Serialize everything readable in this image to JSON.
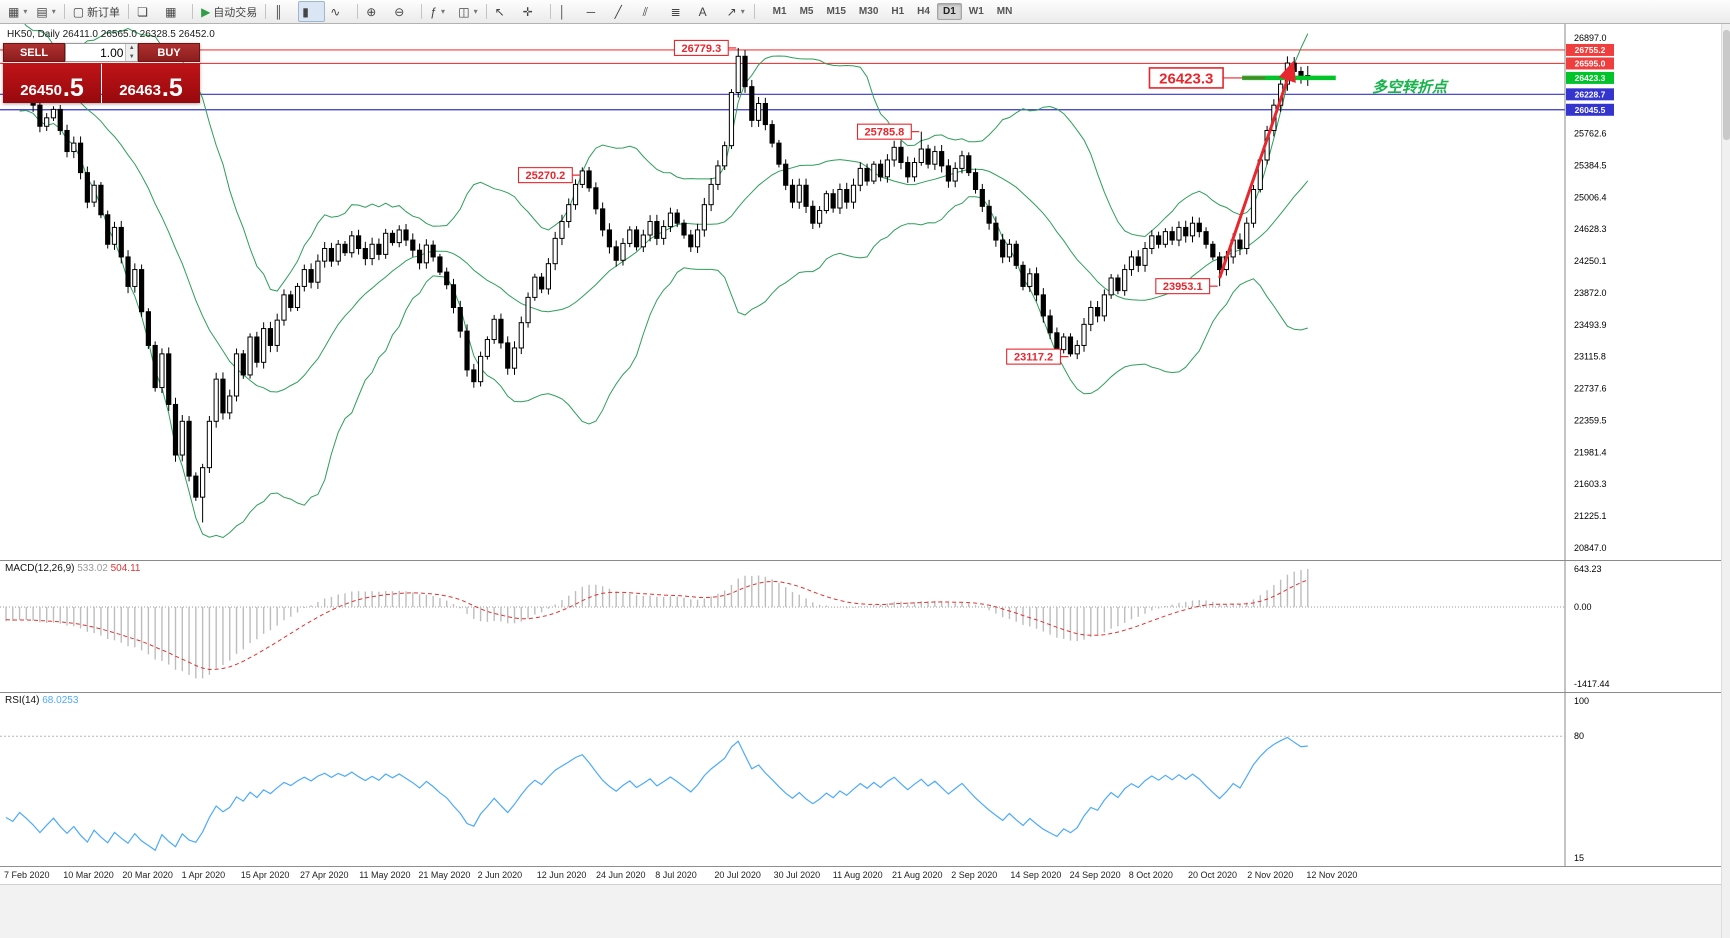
{
  "toolbar": {
    "items": [
      {
        "name": "new-chart-button",
        "glyph": "▦",
        "caret": true
      },
      {
        "name": "profiles-button",
        "glyph": "▤",
        "caret": true
      },
      {
        "type": "sep"
      },
      {
        "name": "new-order-button",
        "glyph": "▢",
        "label": "新订单"
      },
      {
        "type": "sep"
      },
      {
        "name": "window-cascade-button",
        "glyph": "❏"
      },
      {
        "name": "window-tile-button",
        "glyph": "▦"
      },
      {
        "type": "sep"
      },
      {
        "name": "autotrading-button",
        "glyph": "▶",
        "glyph_color": "#2f9e44",
        "label": "自动交易"
      },
      {
        "type": "sep"
      },
      {
        "name": "chart-bars-button",
        "glyph": "║"
      },
      {
        "name": "chart-candles-button",
        "glyph": "▮",
        "active": true
      },
      {
        "name": "chart-line-button",
        "glyph": "∿"
      },
      {
        "type": "sep"
      },
      {
        "name": "zoom-in-button",
        "glyph": "⊕"
      },
      {
        "name": "zoom-out-button",
        "glyph": "⊖"
      },
      {
        "type": "sep"
      },
      {
        "name": "indicators-button",
        "glyph": "ƒ",
        "caret": true
      },
      {
        "name": "objects-button",
        "glyph": "◫",
        "caret": true
      },
      {
        "type": "sep"
      },
      {
        "name": "cursor-button",
        "glyph": "↖"
      },
      {
        "name": "crosshair-button",
        "glyph": "✛"
      },
      {
        "type": "sep"
      },
      {
        "name": "vertical-line-button",
        "glyph": "│"
      },
      {
        "name": "horizontal-line-button",
        "glyph": "─"
      },
      {
        "name": "trendline-button",
        "glyph": "╱"
      },
      {
        "name": "channel-button",
        "glyph": "⫽"
      },
      {
        "name": "fibonacci-button",
        "glyph": "≣"
      },
      {
        "name": "text-label-button",
        "glyph": "A"
      },
      {
        "name": "arrow-objects-button",
        "glyph": "↗",
        "caret": true
      },
      {
        "type": "sep"
      }
    ]
  },
  "timeframes": {
    "items": [
      "M1",
      "M5",
      "M15",
      "M30",
      "H1",
      "H4",
      "D1",
      "W1",
      "MN"
    ],
    "active": "D1"
  },
  "chart_header": {
    "text": "HK50, Daily  26411.0 26565.0 26328.5 26452.0"
  },
  "icons": {
    "spinner_up": "▲",
    "spinner_down": "▼"
  },
  "trade_panel": {
    "sell_label": "SELL",
    "buy_label": "BUY",
    "volume": "1.00",
    "bid_main": "26450",
    "bid_big": ".5",
    "ask_main": "26463",
    "ask_big": ".5"
  },
  "price_axis": {
    "ticks": [
      26897.0,
      25762.6,
      25384.5,
      25006.4,
      24628.3,
      24250.1,
      23872.0,
      23493.9,
      23115.8,
      22737.6,
      22359.5,
      21981.4,
      21603.3,
      21225.1,
      20847.0
    ],
    "levels": [
      {
        "label": "26755.2",
        "value": 26755.2,
        "color": "red",
        "line": "full"
      },
      {
        "label": "26595.0",
        "value": 26595.0,
        "color": "red",
        "line": "full"
      },
      {
        "label": "26423.3",
        "value": 26423.3,
        "color": "green",
        "line": "segment"
      },
      {
        "label": "26228.7",
        "value": 26228.7,
        "color": "blue",
        "line": "full"
      },
      {
        "label": "26045.5",
        "value": 26045.5,
        "color": "blue",
        "line": "full"
      }
    ]
  },
  "annotations": [
    {
      "text": "26779.3",
      "price": 26779.3,
      "bar": 108
    },
    {
      "text": "26423.3",
      "price": 26423.3,
      "bar": 186,
      "large": true
    },
    {
      "text": "25785.8",
      "price": 25785.8,
      "bar": 135
    },
    {
      "text": "25270.2",
      "price": 25270.2,
      "bar": 85
    },
    {
      "text": "23953.1",
      "price": 23953.1,
      "bar": 179
    },
    {
      "text": "23117.2",
      "price": 23117.2,
      "bar": 157
    }
  ],
  "note": {
    "text": "多空转折点"
  },
  "trend_arrow": {
    "from_bar": 179,
    "from_price": 24050,
    "to_bar": 186,
    "to_price": 26600
  },
  "macd": {
    "label": "MACD(12,26,9)",
    "value1": "533.02",
    "value2": "504.11",
    "axis": [
      "643.23",
      "0.00",
      "-1417.44"
    ]
  },
  "rsi": {
    "label": "RSI(14)",
    "value": "68.0253",
    "axis": [
      "100",
      "80",
      "15"
    ]
  },
  "time_axis": {
    "labels": [
      "7 Feb 2020",
      "10 Mar 2020",
      "20 Mar 2020",
      "1 Apr 2020",
      "15 Apr 2020",
      "27 Apr 2020",
      "11 May 2020",
      "21 May 2020",
      "2 Jun 2020",
      "12 Jun 2020",
      "24 Jun 2020",
      "8 Jul 2020",
      "20 Jul 2020",
      "30 Jul 2020",
      "11 Aug 2020",
      "21 Aug 2020",
      "2 Sep 2020",
      "14 Sep 2020",
      "24 Sep 2020",
      "8 Oct 2020",
      "20 Oct 2020",
      "2 Nov 2020",
      "12 Nov 2020"
    ]
  },
  "colors": {
    "up": "#ffffff",
    "down": "#000000",
    "outline": "#000000",
    "bollinger": "#2e9e5b",
    "macd_hist": "#bdbdbd",
    "macd_signal": "#e03131",
    "rsi": "#4dabf7",
    "level_red": "#f03e3e",
    "level_blue": "#3434cf",
    "level_green": "#00c42a",
    "annotation": "#e8262d",
    "note_green": "#17b34c",
    "axis_line": "#8a8a8a"
  },
  "chart_data": {
    "type": "candlestick",
    "symbol": "HK50",
    "period": "Daily",
    "ohlc_current": {
      "open": "26411.0",
      "high": "26565.0",
      "low": "26328.5",
      "close": "26452.0"
    },
    "ylim": [
      20847.0,
      26897.0
    ],
    "indicators": [
      {
        "name": "Bollinger Bands",
        "period": 20,
        "deviation": 2
      },
      {
        "name": "MACD",
        "fast": 12,
        "slow": 26,
        "signal": 9
      },
      {
        "name": "RSI",
        "period": 14
      }
    ],
    "seed_closes": [
      27200,
      27100,
      27300,
      27150,
      27000,
      26850,
      26900,
      27050,
      26800,
      26650,
      26700,
      26500,
      26550,
      26400,
      26350,
      26450,
      26300,
      26350,
      26250,
      26300
    ],
    "closes": [
      26400,
      26300,
      26420,
      26280,
      26100,
      25850,
      25950,
      26050,
      25800,
      25550,
      25650,
      25300,
      24950,
      25150,
      24800,
      24450,
      24650,
      24300,
      23950,
      24150,
      23650,
      23250,
      22750,
      23150,
      22550,
      21950,
      22350,
      21700,
      21450,
      21800,
      22350,
      22850,
      22450,
      22650,
      23150,
      22900,
      23350,
      23050,
      23450,
      23250,
      23550,
      23850,
      23700,
      23950,
      24150,
      24000,
      24250,
      24400,
      24250,
      24450,
      24350,
      24550,
      24400,
      24280,
      24450,
      24330,
      24580,
      24470,
      24620,
      24500,
      24380,
      24230,
      24440,
      24300,
      24120,
      23970,
      23700,
      23420,
      22960,
      22820,
      23120,
      23320,
      23560,
      23280,
      22980,
      23220,
      23520,
      23820,
      24060,
      23920,
      24220,
      24520,
      24720,
      24920,
      25160,
      25320,
      25120,
      24870,
      24620,
      24420,
      24260,
      24460,
      24620,
      24420,
      24560,
      24720,
      24520,
      24660,
      24820,
      24700,
      24560,
      24420,
      24620,
      24920,
      25160,
      25380,
      25620,
      26250,
      26680,
      26320,
      25920,
      26120,
      25870,
      25650,
      25400,
      25150,
      24950,
      25150,
      24900,
      24700,
      24850,
      25050,
      24880,
      25100,
      24950,
      25150,
      25350,
      25200,
      25400,
      25250,
      25450,
      25600,
      25420,
      25250,
      25420,
      25580,
      25400,
      25550,
      25380,
      25200,
      25350,
      25500,
      25300,
      25100,
      24900,
      24700,
      24500,
      24300,
      24450,
      24200,
      23950,
      24100,
      23850,
      23600,
      23400,
      23200,
      23350,
      23150,
      23250,
      23500,
      23700,
      23600,
      23850,
      24050,
      23900,
      24150,
      24300,
      24200,
      24400,
      24550,
      24450,
      24600,
      24500,
      24650,
      24550,
      24700,
      24600,
      24450,
      24300,
      24150,
      24300,
      24500,
      24400,
      24700,
      25100,
      25450,
      25800,
      26100,
      26350,
      26600,
      26500,
      26411,
      26452
    ],
    "wick_overrides": {
      "29": [
        null,
        21150
      ],
      "108": [
        26779.3,
        null
      ],
      "135": [
        25785.8,
        null
      ],
      "157": [
        null,
        23117.2
      ],
      "179": [
        null,
        23953.1
      ],
      "192": [
        26565.0,
        26328.5
      ]
    }
  }
}
